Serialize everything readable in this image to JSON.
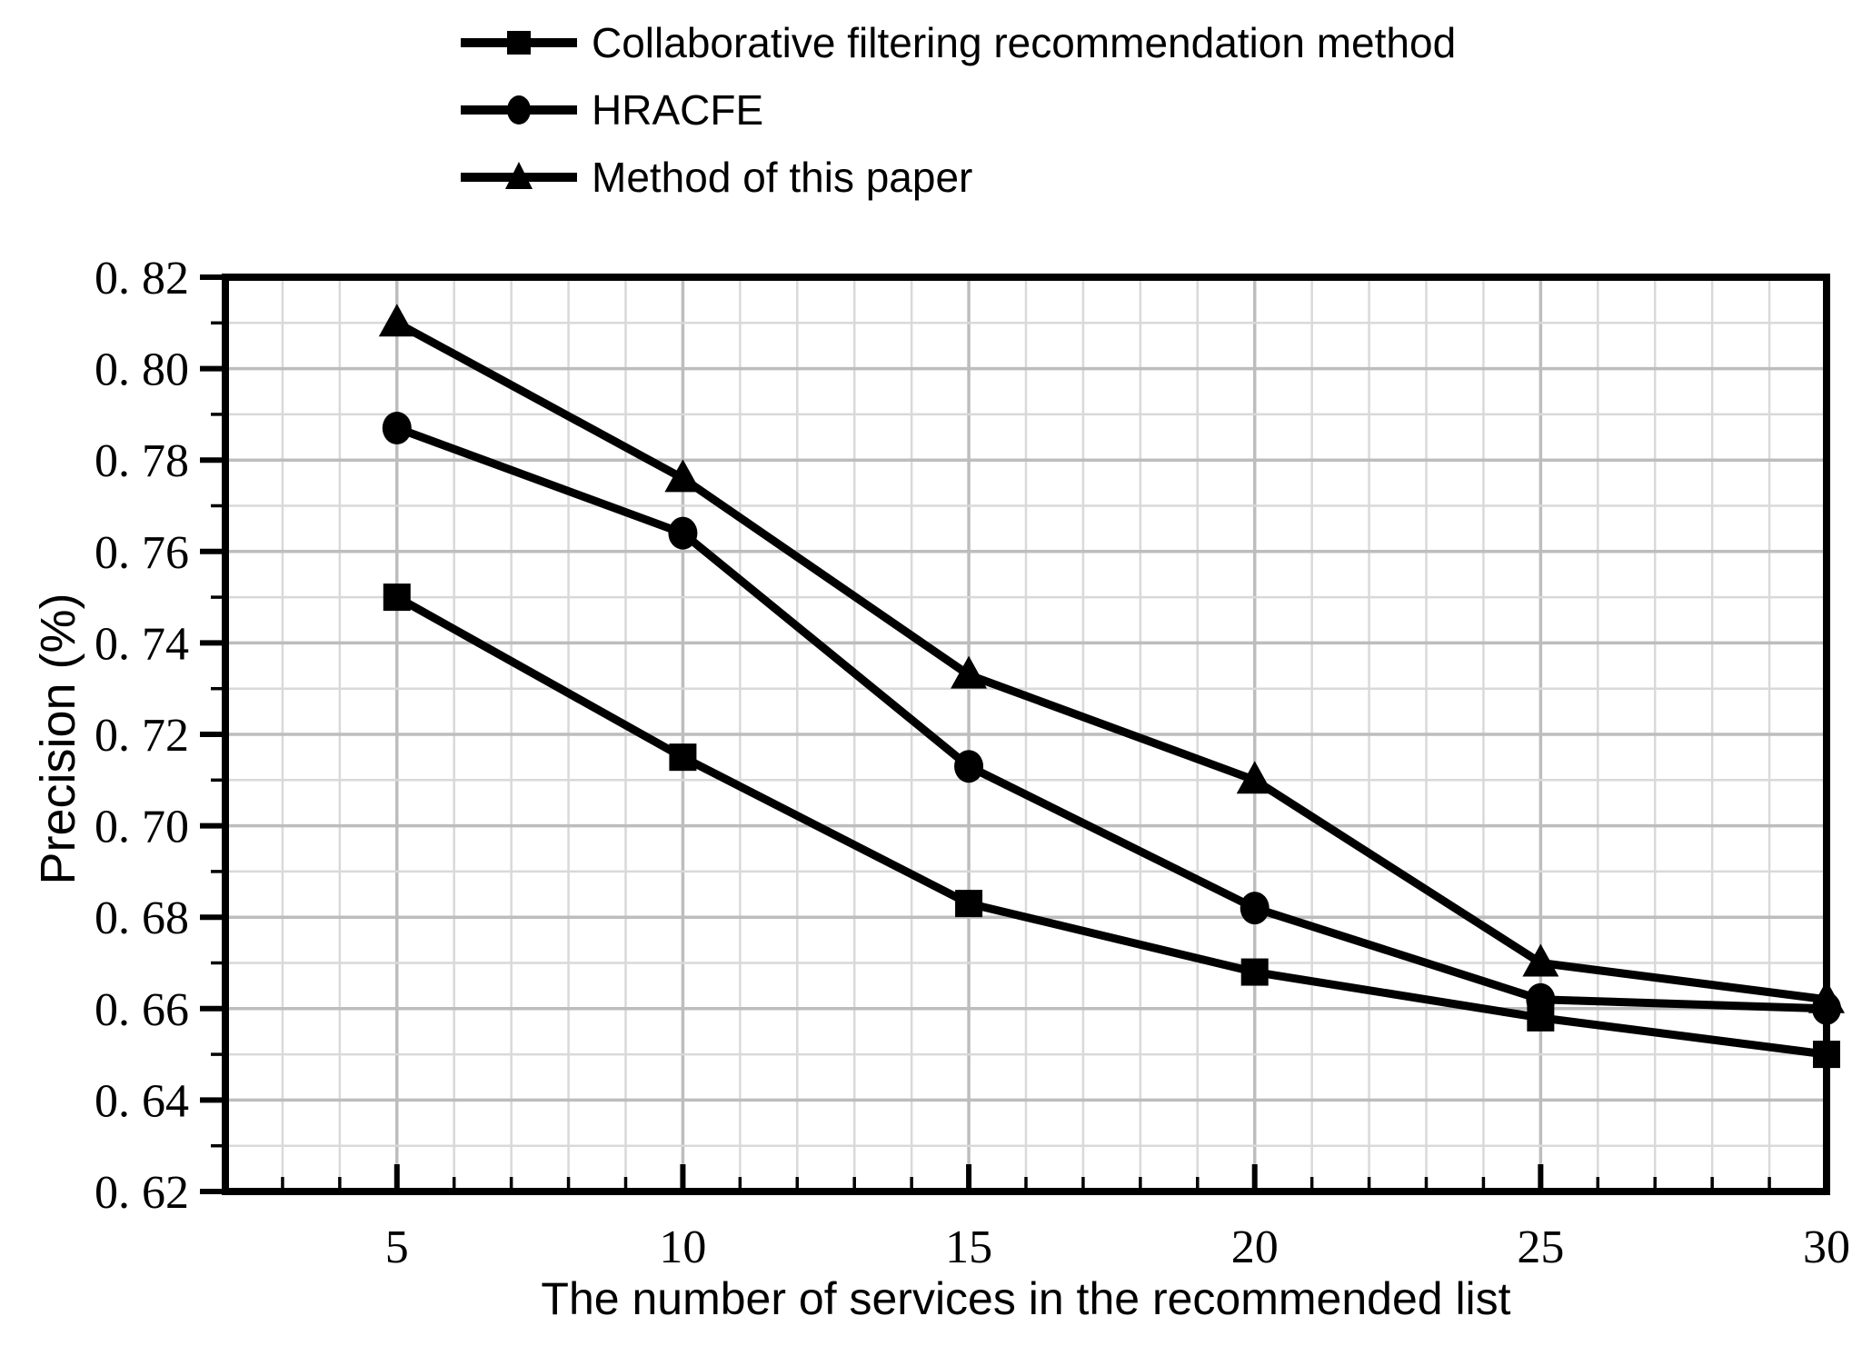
{
  "colors": {
    "background": "#ffffff",
    "line": "#000000",
    "text": "#000000",
    "grid_minor": "#d9d9d9",
    "grid_major": "#bdbdbd",
    "axis": "#000000"
  },
  "legend": {
    "position": "top-left"
  },
  "chart_data": {
    "type": "line",
    "title": "",
    "xlabel": "The number of services in the recommended list",
    "ylabel": "Precision (%)",
    "x": [
      5,
      10,
      15,
      20,
      25,
      30
    ],
    "series": [
      {
        "name": "Collaborative filtering recommendation method",
        "marker": "square",
        "color": "#000000",
        "values": [
          0.75,
          0.715,
          0.683,
          0.668,
          0.658,
          0.65
        ]
      },
      {
        "name": "HRACFE",
        "marker": "circle",
        "color": "#000000",
        "values": [
          0.787,
          0.764,
          0.713,
          0.682,
          0.662,
          0.66
        ]
      },
      {
        "name": "Method of this paper",
        "marker": "triangle",
        "color": "#000000",
        "values": [
          0.81,
          0.776,
          0.733,
          0.71,
          0.67,
          0.662
        ]
      }
    ],
    "xlim": [
      2,
      30
    ],
    "ylim": [
      0.62,
      0.82
    ],
    "x_major_ticks": [
      5,
      10,
      15,
      20,
      25,
      30
    ],
    "x_tick_labels": [
      "5",
      "10",
      "15",
      "20",
      "25",
      "30"
    ],
    "x_minor_step": 1,
    "y_major_step": 0.02,
    "y_minor_step": 0.01,
    "y_tick_labels": [
      "0. 62",
      "0. 64",
      "0. 66",
      "0. 68",
      "0. 70",
      "0. 72",
      "0. 74",
      "0. 76",
      "0. 78",
      "0. 80",
      "0. 82"
    ],
    "grid": true,
    "legend_position": "top-left"
  }
}
